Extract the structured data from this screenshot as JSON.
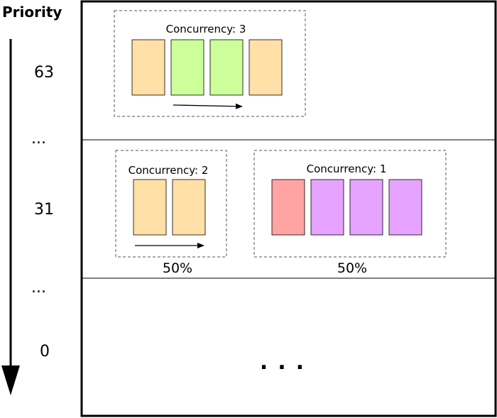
{
  "axis": {
    "title": "Priority",
    "labels": [
      "63",
      "...",
      "31",
      "...",
      "0"
    ]
  },
  "bands": [
    {
      "groups": [
        {
          "label": "Concurrency",
          "value": "3",
          "share": "",
          "tasks": [
            "orange",
            "green",
            "green",
            "orange"
          ],
          "arrow": true
        }
      ]
    },
    {
      "groups": [
        {
          "label": "Concurrency",
          "value": "2",
          "share": "50%",
          "tasks": [
            "orange",
            "orange"
          ],
          "arrow": true
        },
        {
          "label": "Concurrency",
          "value": "1",
          "share": "50%",
          "tasks": [
            "red",
            "purple",
            "purple",
            "purple"
          ],
          "arrow": false
        }
      ]
    },
    {
      "ellipsis": "..."
    }
  ],
  "colors": {
    "orange": "#ffe0a6",
    "green": "#ccff99",
    "red": "#ffa3a3",
    "purple": "#e6a3ff"
  }
}
